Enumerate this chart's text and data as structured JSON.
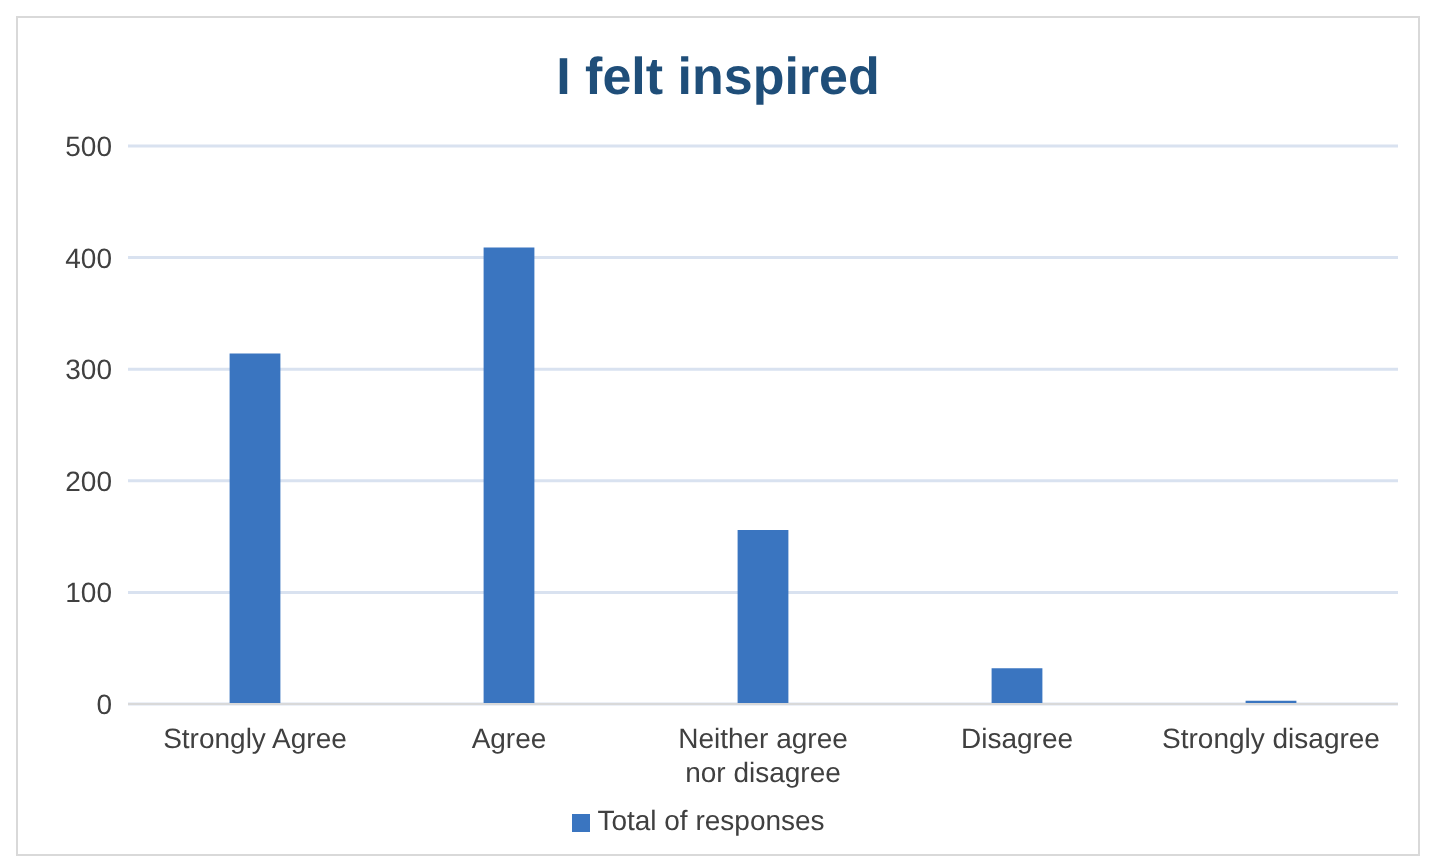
{
  "chart_data": {
    "type": "bar",
    "title": "I felt inspired",
    "categories": [
      "Strongly Agree",
      "Agree",
      "Neither agree nor disagree",
      "Disagree",
      "Strongly disagree"
    ],
    "series": [
      {
        "name": "Total of responses",
        "color": "#3a75c0",
        "values": [
          314,
          409,
          156,
          32,
          3
        ]
      }
    ],
    "ylim": [
      0,
      500
    ],
    "yticks": [
      0,
      100,
      200,
      300,
      400,
      500
    ],
    "grid": "y",
    "legend": "bottom"
  }
}
